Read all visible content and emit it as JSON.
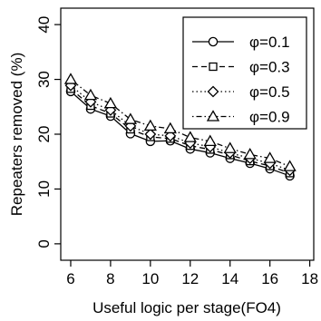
{
  "chart_data": {
    "type": "line",
    "xlabel": "Useful logic per stage(FO4)",
    "ylabel": "Repeaters removed (%)",
    "xlim": [
      5.5,
      18.2
    ],
    "ylim": [
      -3,
      43
    ],
    "xticks": [
      6,
      8,
      10,
      12,
      14,
      16,
      18
    ],
    "yticks": [
      0,
      10,
      20,
      30,
      40
    ],
    "grid": false,
    "legend_position": "top-right",
    "x": [
      6,
      7,
      8,
      9,
      10,
      11,
      12,
      13,
      14,
      15,
      16,
      17
    ],
    "series": [
      {
        "name": "φ=0.1",
        "marker": "circle",
        "dash": "solid",
        "values": [
          27.8,
          24.6,
          23.3,
          20.1,
          18.7,
          18.8,
          17.3,
          16.6,
          15.6,
          14.7,
          13.7,
          12.4
        ]
      },
      {
        "name": "φ=0.3",
        "marker": "square",
        "dash": "dashed",
        "values": [
          28.3,
          25.2,
          23.8,
          20.9,
          19.5,
          19.2,
          17.9,
          17.2,
          16.2,
          15.1,
          14.2,
          12.9
        ]
      },
      {
        "name": "φ=0.5",
        "marker": "diamond",
        "dash": "dotted",
        "values": [
          28.9,
          25.9,
          24.4,
          21.5,
          20.0,
          19.7,
          18.4,
          17.7,
          16.6,
          15.6,
          14.7,
          13.4
        ]
      },
      {
        "name": "φ=0.9",
        "marker": "triangle",
        "dash": "dashdot",
        "values": [
          30.0,
          27.1,
          25.6,
          22.7,
          21.5,
          21.0,
          19.4,
          18.7,
          17.4,
          16.3,
          15.6,
          14.1
        ]
      }
    ]
  }
}
